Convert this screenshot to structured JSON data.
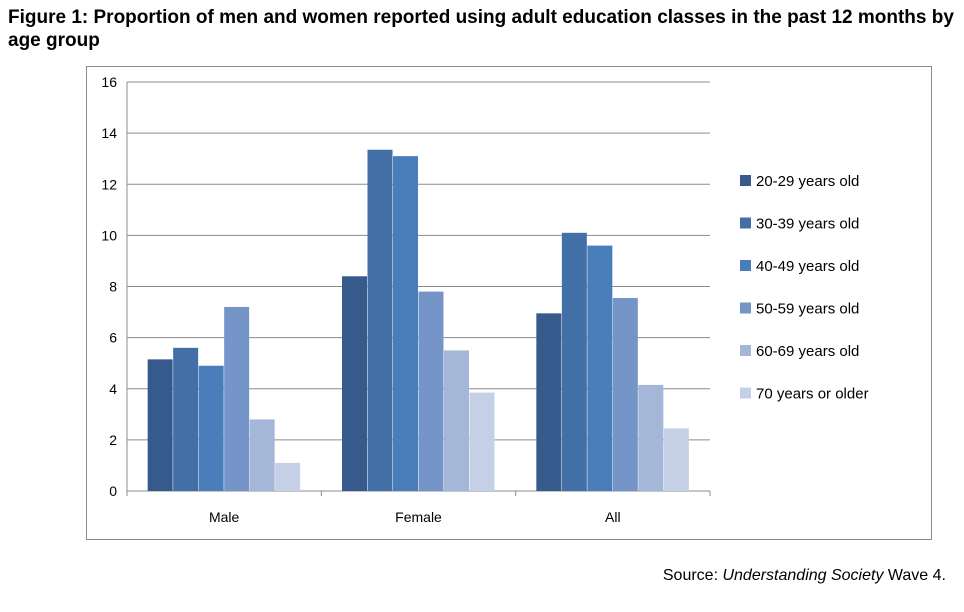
{
  "title": "Figure 1: Proportion of men and women reported using adult education classes in the past 12 months by age group",
  "source": {
    "prefix": "Source: ",
    "italic": "Understanding Society",
    "suffix": " Wave 4."
  },
  "chart_data": {
    "type": "bar",
    "title": "Figure 1: Proportion of men and women reported using adult education classes in the past 12 months by age group",
    "xlabel": "",
    "ylabel": "",
    "categories": [
      "Male",
      "Female",
      "All"
    ],
    "ylim": [
      0,
      16
    ],
    "yticks": [
      0,
      2,
      4,
      6,
      8,
      10,
      12,
      14,
      16
    ],
    "grid": true,
    "legend_position": "right",
    "series": [
      {
        "name": "20-29 years old",
        "values": [
          5.15,
          8.4,
          6.95
        ],
        "color": "#375a8c"
      },
      {
        "name": "30-39 years old",
        "values": [
          5.6,
          13.35,
          10.1
        ],
        "color": "#416fa6"
      },
      {
        "name": "40-49 years old",
        "values": [
          4.9,
          13.1,
          9.6
        ],
        "color": "#4a7ebb"
      },
      {
        "name": "50-59 years old",
        "values": [
          7.2,
          7.8,
          7.55
        ],
        "color": "#7595c8"
      },
      {
        "name": "60-69 years old",
        "values": [
          2.8,
          5.5,
          4.15
        ],
        "color": "#a5b7d9"
      },
      {
        "name": "70 years or older",
        "values": [
          1.1,
          3.85,
          2.45
        ],
        "color": "#c5d0e6"
      }
    ]
  }
}
